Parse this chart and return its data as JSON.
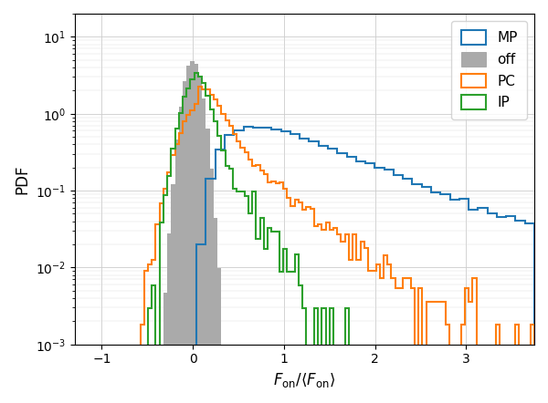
{
  "title": "",
  "xlabel": "$F_{\\mathrm{on}} / \\langle F_{\\mathrm{on}} \\rangle$",
  "ylabel": "PDF",
  "xlim": [
    -1.3,
    3.75
  ],
  "ylim": [
    0.001,
    20
  ],
  "colors": {
    "MP": "#1f77b4",
    "off": "#aaaaaa",
    "PC": "#ff7f0e",
    "IP": "#2ca02c"
  },
  "figsize": [
    6.0,
    4.42
  ],
  "dpi": 100
}
